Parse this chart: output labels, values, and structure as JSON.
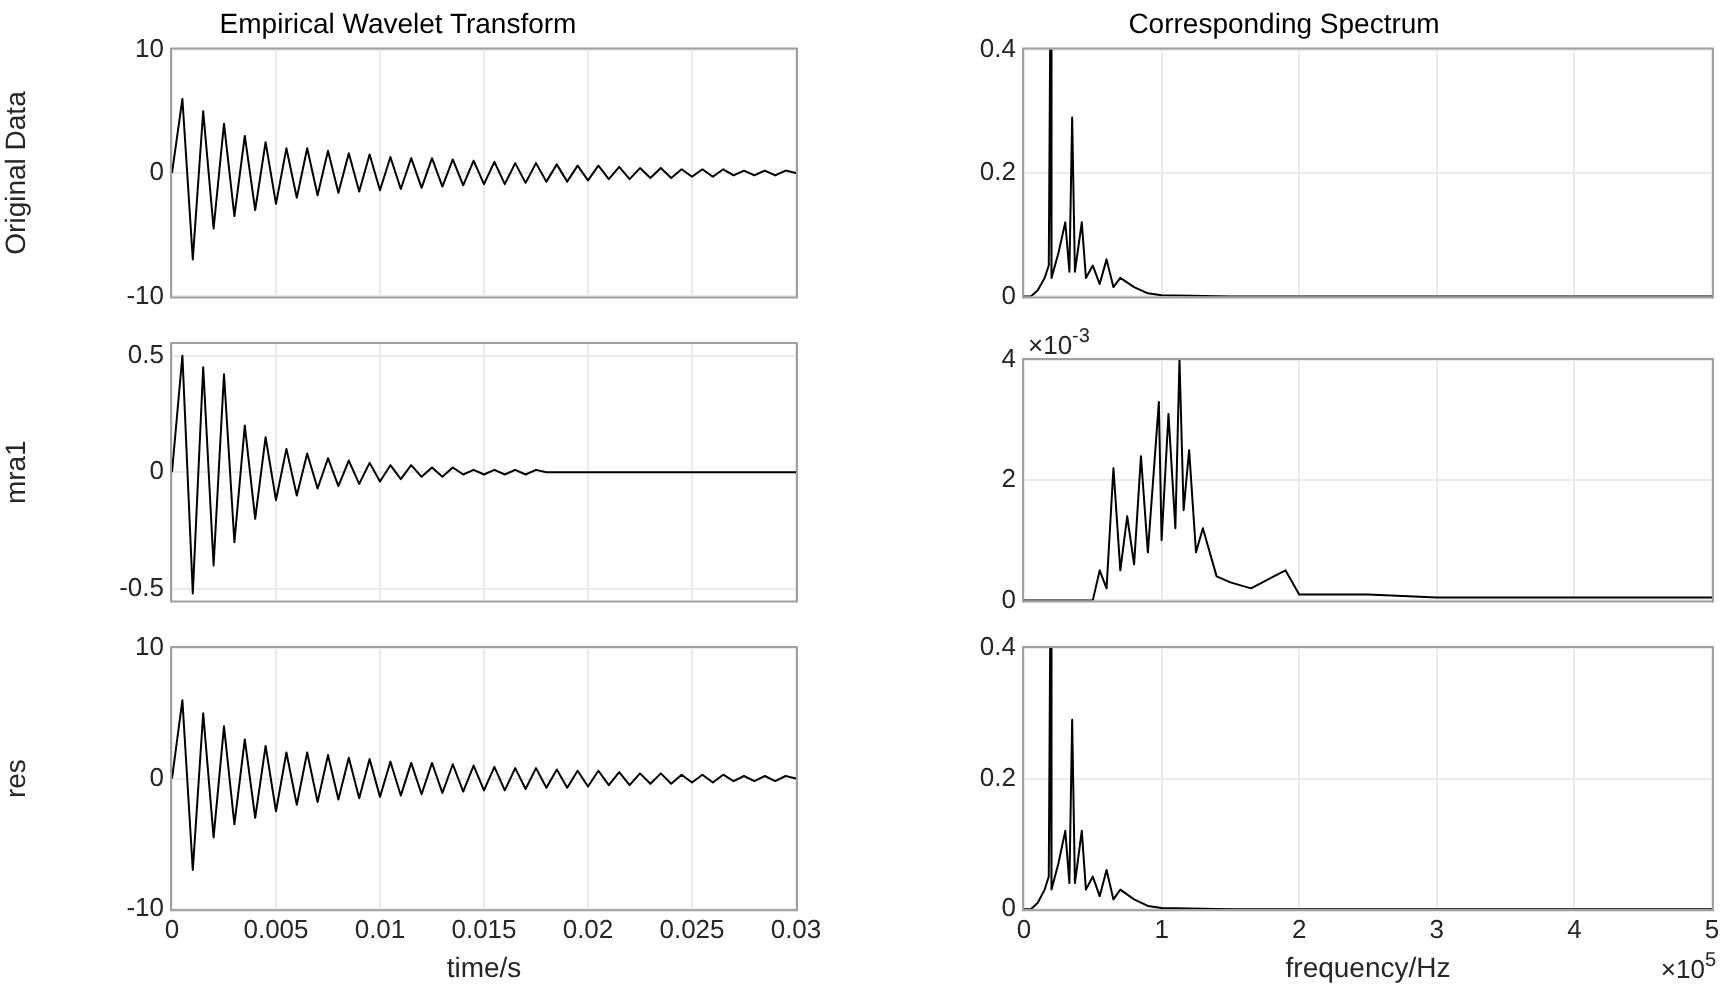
{
  "chart_data": [
    {
      "type": "line",
      "title": "Empirical Wavelet Transform",
      "ylabel": "Original Data",
      "color": "#000000",
      "grid": true,
      "tick_labels": "y",
      "x": [
        0,
        0.0005,
        0.001,
        0.0015,
        0.002,
        0.0025,
        0.003,
        0.0035,
        0.004,
        0.0045,
        0.005,
        0.0055,
        0.006,
        0.0065,
        0.007,
        0.0075,
        0.008,
        0.0085,
        0.009,
        0.0095,
        0.01,
        0.0105,
        0.011,
        0.0115,
        0.012,
        0.0125,
        0.013,
        0.0135,
        0.014,
        0.0145,
        0.015,
        0.0155,
        0.016,
        0.0165,
        0.017,
        0.0175,
        0.018,
        0.0185,
        0.019,
        0.0195,
        0.02,
        0.0205,
        0.021,
        0.0215,
        0.022,
        0.0225,
        0.023,
        0.0235,
        0.024,
        0.0245,
        0.025,
        0.0255,
        0.026,
        0.0265,
        0.027,
        0.0275,
        0.028,
        0.0285,
        0.029,
        0.0295,
        0.03
      ],
      "values": [
        0,
        6,
        -7,
        5,
        -4.5,
        4,
        -3.5,
        3,
        -3,
        2.5,
        -2.5,
        2,
        -2,
        2,
        -1.8,
        1.8,
        -1.6,
        1.6,
        -1.5,
        1.5,
        -1.4,
        1.3,
        -1.3,
        1.2,
        -1.2,
        1.2,
        -1.1,
        1.1,
        -1,
        1,
        -0.9,
        0.9,
        -0.9,
        0.8,
        -0.8,
        0.8,
        -0.7,
        0.7,
        -0.7,
        0.6,
        -0.6,
        0.6,
        -0.5,
        0.5,
        -0.5,
        0.4,
        -0.4,
        0.4,
        -0.4,
        0.3,
        -0.3,
        0.3,
        -0.3,
        0.3,
        -0.2,
        0.2,
        -0.2,
        0.2,
        -0.2,
        0.2,
        0
      ],
      "xlim": [
        0,
        0.03
      ],
      "xticks": [
        0,
        0.005,
        0.01,
        0.015,
        0.02,
        0.025,
        0.03
      ],
      "ylim": [
        -10,
        10
      ],
      "yticks": [
        -10,
        0,
        10
      ]
    },
    {
      "type": "line",
      "title": "Corresponding Spectrum",
      "color": "#000000",
      "grid": true,
      "tick_labels": "y",
      "x": [
        0,
        0.05,
        0.1,
        0.15,
        0.18,
        0.19,
        0.2,
        0.25,
        0.3,
        0.33,
        0.35,
        0.37,
        0.42,
        0.45,
        0.5,
        0.55,
        0.6,
        0.65,
        0.7,
        0.8,
        0.9,
        1,
        1.5,
        5
      ],
      "values": [
        0,
        0,
        0.01,
        0.03,
        0.05,
        0.4,
        0.03,
        0.07,
        0.12,
        0.04,
        0.29,
        0.04,
        0.12,
        0.03,
        0.05,
        0.02,
        0.06,
        0.015,
        0.03,
        0.015,
        0.005,
        0.002,
        0,
        0
      ],
      "xlim": [
        0,
        5
      ],
      "xticks": [
        0,
        1,
        2,
        3,
        4,
        5
      ],
      "ylim": [
        0,
        0.4
      ],
      "yticks": [
        0,
        0.2,
        0.4
      ]
    },
    {
      "type": "line",
      "ylabel": "mra1",
      "color": "#000000",
      "grid": true,
      "tick_labels": "y",
      "x": [
        0,
        0.0005,
        0.001,
        0.0015,
        0.002,
        0.0025,
        0.003,
        0.0035,
        0.004,
        0.0045,
        0.005,
        0.0055,
        0.006,
        0.0065,
        0.007,
        0.0075,
        0.008,
        0.0085,
        0.009,
        0.0095,
        0.01,
        0.0105,
        0.011,
        0.0115,
        0.012,
        0.0125,
        0.013,
        0.0135,
        0.014,
        0.0145,
        0.015,
        0.0155,
        0.016,
        0.0165,
        0.017,
        0.0175,
        0.018,
        0.0185,
        0.019,
        0.0195,
        0.02,
        0.0205,
        0.021,
        0.0215,
        0.022,
        0.0225,
        0.023,
        0.0235,
        0.024,
        0.0245,
        0.025,
        0.0255,
        0.026,
        0.0265,
        0.027,
        0.0275,
        0.028,
        0.0285,
        0.029,
        0.0295,
        0.03
      ],
      "values": [
        0,
        0.5,
        -0.52,
        0.45,
        -0.4,
        0.42,
        -0.3,
        0.2,
        -0.2,
        0.15,
        -0.12,
        0.1,
        -0.1,
        0.08,
        -0.07,
        0.06,
        -0.06,
        0.05,
        -0.05,
        0.04,
        -0.04,
        0.03,
        -0.03,
        0.03,
        -0.02,
        0.02,
        -0.02,
        0.02,
        -0.01,
        0.01,
        -0.01,
        0.01,
        -0.01,
        0.01,
        -0.01,
        0.01,
        0,
        0,
        0,
        0,
        0,
        0,
        0,
        0,
        0,
        0,
        0,
        0,
        0,
        0,
        0,
        0,
        0,
        0,
        0,
        0,
        0,
        0,
        0,
        0,
        0
      ],
      "xlim": [
        0,
        0.03
      ],
      "xticks": [
        0,
        0.005,
        0.01,
        0.015,
        0.02,
        0.025,
        0.03
      ],
      "ylim": [
        -0.55,
        0.55
      ],
      "yticks": [
        -0.5,
        0,
        0.5
      ]
    },
    {
      "type": "line",
      "color": "#000000",
      "grid": true,
      "tick_labels": "y",
      "annotations": [
        "×10$^{-3}$"
      ],
      "x": [
        0,
        0.5,
        0.55,
        0.6,
        0.65,
        0.7,
        0.75,
        0.8,
        0.85,
        0.9,
        0.98,
        1,
        1.05,
        1.1,
        1.13,
        1.16,
        1.2,
        1.25,
        1.3,
        1.4,
        1.5,
        1.65,
        1.9,
        2,
        2.5,
        3,
        4,
        5
      ],
      "values": [
        0,
        0,
        0.5,
        0.2,
        2.2,
        0.5,
        1.4,
        0.6,
        2.4,
        0.8,
        3.3,
        1,
        3.1,
        1.2,
        4,
        1.5,
        2.5,
        0.8,
        1.2,
        0.4,
        0.3,
        0.2,
        0.5,
        0.1,
        0.1,
        0.05,
        0.05,
        0.05
      ],
      "xlim": [
        0,
        5
      ],
      "xticks": [
        0,
        1,
        2,
        3,
        4,
        5
      ],
      "ylim": [
        0,
        4
      ],
      "yticks": [
        0,
        2,
        4
      ]
    },
    {
      "type": "line",
      "ylabel": "res",
      "xlabel": "time/s",
      "color": "#000000",
      "grid": true,
      "x": [
        0,
        0.0005,
        0.001,
        0.0015,
        0.002,
        0.0025,
        0.003,
        0.0035,
        0.004,
        0.0045,
        0.005,
        0.0055,
        0.006,
        0.0065,
        0.007,
        0.0075,
        0.008,
        0.0085,
        0.009,
        0.0095,
        0.01,
        0.0105,
        0.011,
        0.0115,
        0.012,
        0.0125,
        0.013,
        0.0135,
        0.014,
        0.0145,
        0.015,
        0.0155,
        0.016,
        0.0165,
        0.017,
        0.0175,
        0.018,
        0.0185,
        0.019,
        0.0195,
        0.02,
        0.0205,
        0.021,
        0.0215,
        0.022,
        0.0225,
        0.023,
        0.0235,
        0.024,
        0.0245,
        0.025,
        0.0255,
        0.026,
        0.0265,
        0.027,
        0.0275,
        0.028,
        0.0285,
        0.029,
        0.0295,
        0.03
      ],
      "values": [
        0,
        6,
        -7,
        5,
        -4.5,
        4,
        -3.5,
        3,
        -3,
        2.5,
        -2.5,
        2,
        -2,
        2,
        -1.8,
        1.8,
        -1.6,
        1.6,
        -1.5,
        1.5,
        -1.4,
        1.3,
        -1.3,
        1.2,
        -1.2,
        1.2,
        -1.1,
        1.1,
        -1,
        1,
        -0.9,
        0.9,
        -0.9,
        0.8,
        -0.8,
        0.8,
        -0.7,
        0.7,
        -0.7,
        0.6,
        -0.6,
        0.6,
        -0.5,
        0.5,
        -0.5,
        0.4,
        -0.4,
        0.4,
        -0.4,
        0.3,
        -0.3,
        0.3,
        -0.3,
        0.3,
        -0.2,
        0.2,
        -0.2,
        0.2,
        -0.2,
        0.2,
        0
      ],
      "xlim": [
        0,
        0.03
      ],
      "xticks": [
        0,
        0.005,
        0.01,
        0.015,
        0.02,
        0.025,
        0.03
      ],
      "ylim": [
        -10,
        10
      ],
      "yticks": [
        -10,
        0,
        10
      ]
    },
    {
      "type": "line",
      "xlabel": "frequency/Hz",
      "color": "#000000",
      "grid": true,
      "annotations": [
        "×10$^{5}$"
      ],
      "x": [
        0,
        0.05,
        0.1,
        0.15,
        0.18,
        0.19,
        0.2,
        0.25,
        0.3,
        0.33,
        0.35,
        0.37,
        0.42,
        0.45,
        0.5,
        0.55,
        0.6,
        0.65,
        0.7,
        0.8,
        0.9,
        1,
        1.5,
        5
      ],
      "values": [
        0,
        0,
        0.01,
        0.03,
        0.05,
        0.4,
        0.03,
        0.07,
        0.12,
        0.04,
        0.29,
        0.04,
        0.12,
        0.03,
        0.05,
        0.02,
        0.06,
        0.015,
        0.03,
        0.015,
        0.005,
        0.002,
        0,
        0
      ],
      "xlim": [
        0,
        5
      ],
      "xticks": [
        0,
        1,
        2,
        3,
        4,
        5
      ],
      "ylim": [
        0,
        0.4
      ],
      "yticks": [
        0,
        0.2,
        0.4
      ]
    }
  ]
}
